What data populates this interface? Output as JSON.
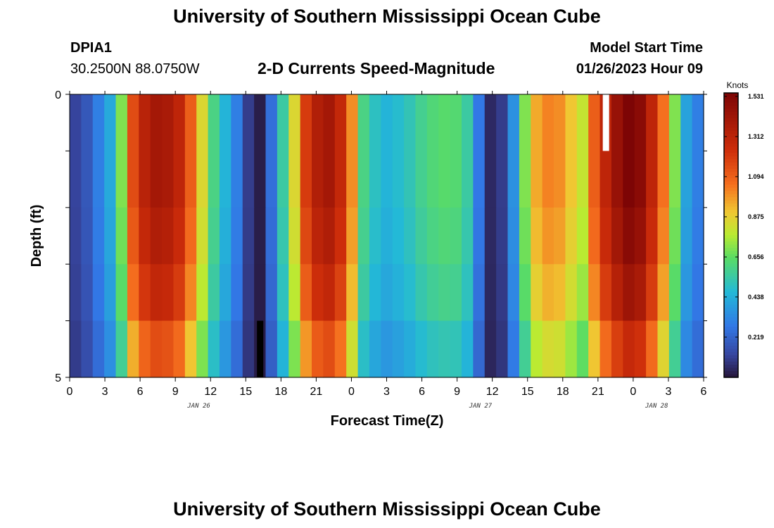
{
  "header": {
    "title": "University of Southern Mississippi Ocean Cube",
    "station": "DPIA1",
    "coordinates": "30.2500N  88.0750W",
    "subtitle": "2-D Currents Speed-Magnitude",
    "model_start_label": "Model Start Time",
    "model_start_value": "01/26/2023 Hour 09"
  },
  "footer": {
    "title": "University of Southern Mississippi Ocean Cube"
  },
  "chart_data": {
    "type": "heatmap",
    "title": "2-D Currents Speed-Magnitude",
    "xlabel": "Forecast Time(Z)",
    "ylabel": "Depth (ft)",
    "units": "Knots",
    "x_hours": [
      0,
      1,
      2,
      3,
      4,
      5,
      6,
      7,
      8,
      9,
      10,
      11,
      12,
      13,
      14,
      15,
      16,
      17,
      18,
      19,
      20,
      21,
      22,
      23,
      24,
      25,
      26,
      27,
      28,
      29,
      30,
      31,
      32,
      33,
      34,
      35,
      36,
      37,
      38,
      39,
      40,
      41,
      42,
      43,
      44,
      45,
      46,
      47,
      48,
      49,
      50,
      51,
      52,
      53,
      54
    ],
    "x_tick_hours": [
      0,
      3,
      6,
      9,
      12,
      15,
      18,
      21,
      24,
      27,
      30,
      33,
      36,
      39,
      42,
      45,
      48,
      51,
      54
    ],
    "x_tick_labels": [
      "0",
      "3",
      "6",
      "9",
      "12",
      "15",
      "18",
      "21",
      "0",
      "3",
      "6",
      "9",
      "12",
      "15",
      "18",
      "21",
      "0",
      "3",
      "6"
    ],
    "date_labels": [
      {
        "hour": 11,
        "text": "JAN 26"
      },
      {
        "hour": 35,
        "text": "JAN 27"
      },
      {
        "hour": 50,
        "text": "JAN 28"
      }
    ],
    "y_ticks": [
      0,
      5
    ],
    "ylim": [
      0,
      5
    ],
    "depth_rows": 5,
    "colorbar": {
      "min": 0,
      "max": 1.55,
      "tick_values": [
        0.219,
        0.438,
        0.656,
        0.875,
        1.094,
        1.312,
        1.531
      ],
      "tick_labels": [
        "0.219",
        "0.438",
        "0.656",
        "0.875",
        "1.094",
        "1.312",
        "1.531"
      ]
    },
    "profile": [
      0.12,
      0.18,
      0.3,
      0.42,
      0.7,
      1.15,
      1.32,
      1.4,
      1.38,
      1.3,
      1.1,
      0.85,
      0.6,
      0.45,
      0.3,
      0.1,
      0.02,
      0.25,
      0.55,
      0.85,
      1.2,
      1.35,
      1.4,
      1.28,
      1.0,
      0.6,
      0.5,
      0.45,
      0.48,
      0.52,
      0.58,
      0.62,
      0.64,
      0.63,
      0.55,
      0.28,
      0.05,
      0.1,
      0.35,
      0.7,
      0.95,
      1.02,
      1.0,
      0.9,
      0.8,
      1.1,
      1.3,
      1.45,
      1.55,
      1.5,
      1.3,
      1.05,
      0.7,
      0.4,
      0.3
    ],
    "depth_factors": [
      1.0,
      1.0,
      0.97,
      0.92,
      0.82
    ],
    "missing_cells": [
      {
        "hour": 46,
        "depth_row": 0,
        "color": "#ffffff"
      },
      {
        "hour": 16,
        "depth_row": 4,
        "color": "#000000"
      }
    ]
  }
}
